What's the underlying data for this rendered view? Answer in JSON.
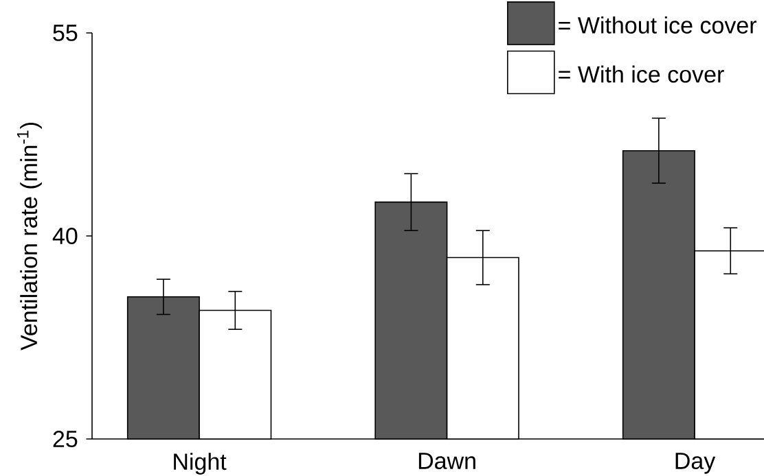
{
  "chart_data": {
    "type": "bar",
    "ylabel": "Ventilation rate (min$^{-1}$)",
    "categories": [
      "Night",
      "Dawn",
      "Day"
    ],
    "series": [
      {
        "name": "= Without ice cover",
        "color": "#595959",
        "values": [
          35.5,
          42.5,
          46.3
        ],
        "errors": [
          1.3,
          2.1,
          2.4
        ]
      },
      {
        "name": "= With ice cover",
        "color": "#ffffff",
        "values": [
          34.5,
          38.4,
          38.9
        ],
        "errors": [
          1.4,
          2.0,
          1.7
        ]
      }
    ],
    "ylim": [
      25,
      55
    ],
    "yticks": [
      25,
      40,
      55
    ],
    "legend": "top right"
  }
}
